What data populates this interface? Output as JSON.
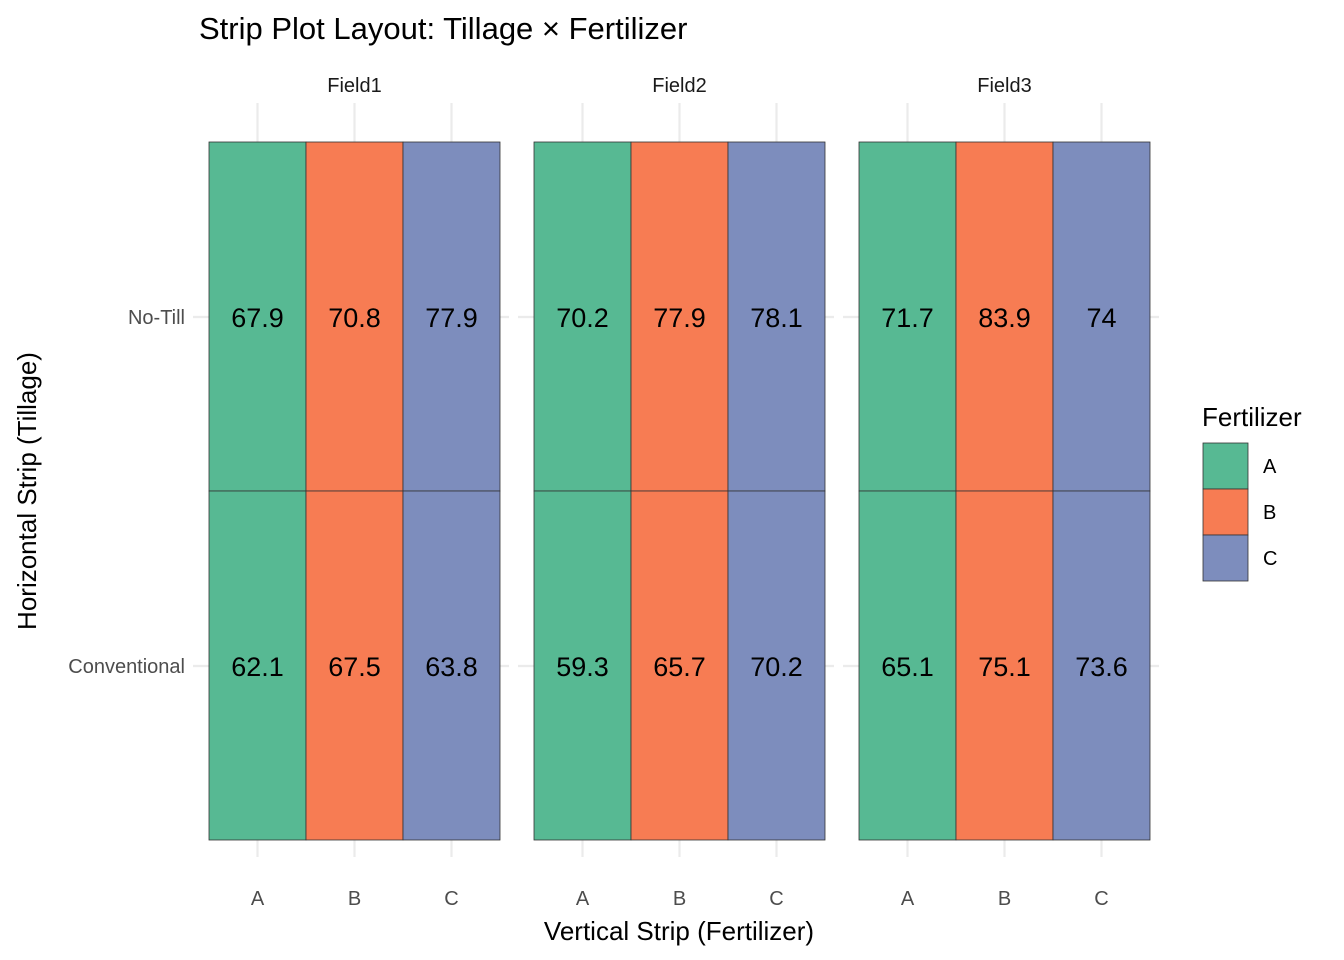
{
  "chart_data": {
    "type": "heatmap",
    "title": "Strip Plot Layout: Tillage × Fertilizer",
    "xlabel": "Vertical Strip (Fertilizer)",
    "ylabel": "Horizontal Strip (Tillage)",
    "facets": [
      "Field1",
      "Field2",
      "Field3"
    ],
    "x_categories": [
      "A",
      "B",
      "C"
    ],
    "y_categories": [
      "No-Till",
      "Conventional"
    ],
    "fill_by": "Fertilizer",
    "legend": {
      "title": "Fertilizer",
      "position": "right",
      "entries": [
        {
          "label": "A",
          "color": "#57B993"
        },
        {
          "label": "B",
          "color": "#F77C53"
        },
        {
          "label": "C",
          "color": "#7D8DBD"
        }
      ]
    },
    "cells": [
      {
        "facet": "Field1",
        "tillage": "No-Till",
        "fertilizer": "A",
        "value": "67.9"
      },
      {
        "facet": "Field1",
        "tillage": "No-Till",
        "fertilizer": "B",
        "value": "70.8"
      },
      {
        "facet": "Field1",
        "tillage": "No-Till",
        "fertilizer": "C",
        "value": "77.9"
      },
      {
        "facet": "Field1",
        "tillage": "Conventional",
        "fertilizer": "A",
        "value": "62.1"
      },
      {
        "facet": "Field1",
        "tillage": "Conventional",
        "fertilizer": "B",
        "value": "67.5"
      },
      {
        "facet": "Field1",
        "tillage": "Conventional",
        "fertilizer": "C",
        "value": "63.8"
      },
      {
        "facet": "Field2",
        "tillage": "No-Till",
        "fertilizer": "A",
        "value": "70.2"
      },
      {
        "facet": "Field2",
        "tillage": "No-Till",
        "fertilizer": "B",
        "value": "77.9"
      },
      {
        "facet": "Field2",
        "tillage": "No-Till",
        "fertilizer": "C",
        "value": "78.1"
      },
      {
        "facet": "Field2",
        "tillage": "Conventional",
        "fertilizer": "A",
        "value": "59.3"
      },
      {
        "facet": "Field2",
        "tillage": "Conventional",
        "fertilizer": "B",
        "value": "65.7"
      },
      {
        "facet": "Field2",
        "tillage": "Conventional",
        "fertilizer": "C",
        "value": "70.2"
      },
      {
        "facet": "Field3",
        "tillage": "No-Till",
        "fertilizer": "A",
        "value": "71.7"
      },
      {
        "facet": "Field3",
        "tillage": "No-Till",
        "fertilizer": "B",
        "value": "83.9"
      },
      {
        "facet": "Field3",
        "tillage": "No-Till",
        "fertilizer": "C",
        "value": "74"
      },
      {
        "facet": "Field3",
        "tillage": "Conventional",
        "fertilizer": "A",
        "value": "65.1"
      },
      {
        "facet": "Field3",
        "tillage": "Conventional",
        "fertilizer": "B",
        "value": "75.1"
      },
      {
        "facet": "Field3",
        "tillage": "Conventional",
        "fertilizer": "C",
        "value": "73.6"
      }
    ]
  }
}
